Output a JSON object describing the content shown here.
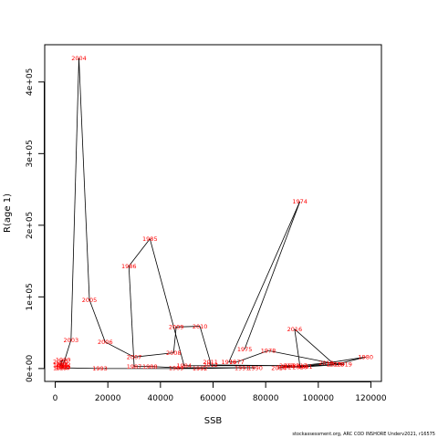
{
  "footer": "stockassessment.org, ARC COD INSHORE Underv2021, r16575",
  "chart_data": {
    "type": "line",
    "title": "",
    "xlabel": "SSB",
    "ylabel": "R(age 1)",
    "xlim": [
      -4000,
      124000
    ],
    "ylim": [
      -18000,
      452000
    ],
    "xticks": [
      0,
      20000,
      40000,
      60000,
      80000,
      100000,
      120000
    ],
    "yticks": [
      0,
      100000,
      200000,
      300000,
      400000
    ],
    "xtick_labels": [
      "0",
      "20000",
      "40000",
      "60000",
      "80000",
      "100000",
      "120000"
    ],
    "ytick_labels": [
      "0e+00",
      "1e+05",
      "2e+05",
      "3e+05",
      "4e+05"
    ],
    "grid": false,
    "legend": "none",
    "line_color": "#000000",
    "label_color": "#ff0000",
    "points": [
      {
        "year": "1975",
        "ssb": 72000,
        "rec": 27000
      },
      {
        "year": "1974",
        "ssb": 93000,
        "rec": 233000
      },
      {
        "year": "1976",
        "ssb": 66000,
        "rec": 9000
      },
      {
        "year": "1977",
        "ssb": 69000,
        "rec": 9000
      },
      {
        "year": "1978",
        "ssb": 81000,
        "rec": 25000
      },
      {
        "year": "1979",
        "ssb": 107000,
        "rec": 6000
      },
      {
        "year": "1980",
        "ssb": 118000,
        "rec": 16000
      },
      {
        "year": "1981",
        "ssb": 95000,
        "rec": 3000
      },
      {
        "year": "1982",
        "ssb": 87000,
        "rec": 2000
      },
      {
        "year": "1983",
        "ssb": 90000,
        "rec": 4000
      },
      {
        "year": "1984",
        "ssb": 49000,
        "rec": 4000
      },
      {
        "year": "1985",
        "ssb": 36000,
        "rec": 181000
      },
      {
        "year": "1986",
        "ssb": 28000,
        "rec": 143000
      },
      {
        "year": "1987",
        "ssb": 30000,
        "rec": 3000
      },
      {
        "year": "1988",
        "ssb": 36000,
        "rec": 3000
      },
      {
        "year": "1989",
        "ssb": 46000,
        "rec": 1000
      },
      {
        "year": "1990",
        "ssb": 76000,
        "rec": 1000
      },
      {
        "year": "1991",
        "ssb": 71000,
        "rec": 1000
      },
      {
        "year": "1992",
        "ssb": 55000,
        "rec": 0
      },
      {
        "year": "1993",
        "ssb": 17000,
        "rec": 0
      },
      {
        "year": "1994",
        "ssb": 2000,
        "rec": 1000
      },
      {
        "year": "1995",
        "ssb": 3000,
        "rec": 2000
      },
      {
        "year": "1996",
        "ssb": 2000,
        "rec": 4000
      },
      {
        "year": "1997",
        "ssb": 3000,
        "rec": 1000
      },
      {
        "year": "1998",
        "ssb": 2000,
        "rec": 6000
      },
      {
        "year": "1999",
        "ssb": 3000,
        "rec": 12000
      },
      {
        "year": "2000",
        "ssb": 2000,
        "rec": 10000
      },
      {
        "year": "2001",
        "ssb": 3000,
        "rec": 3000
      },
      {
        "year": "2002",
        "ssb": 3000,
        "rec": 5000
      },
      {
        "year": "2003",
        "ssb": 6000,
        "rec": 40000
      },
      {
        "year": "2004",
        "ssb": 9000,
        "rec": 433000
      },
      {
        "year": "2005",
        "ssb": 13000,
        "rec": 96000
      },
      {
        "year": "2006",
        "ssb": 19000,
        "rec": 37000
      },
      {
        "year": "2007",
        "ssb": 30000,
        "rec": 16000
      },
      {
        "year": "2008",
        "ssb": 45000,
        "rec": 22000
      },
      {
        "year": "2009",
        "ssb": 46000,
        "rec": 58000
      },
      {
        "year": "2010",
        "ssb": 55000,
        "rec": 59000
      },
      {
        "year": "2011",
        "ssb": 59000,
        "rec": 9000
      },
      {
        "year": "2012",
        "ssb": 59000,
        "rec": 5000
      },
      {
        "year": "2013",
        "ssb": 88000,
        "rec": 4000
      },
      {
        "year": "2014",
        "ssb": 85000,
        "rec": 1000
      },
      {
        "year": "2015",
        "ssb": 106000,
        "rec": 6000
      },
      {
        "year": "2016",
        "ssb": 91000,
        "rec": 55000
      },
      {
        "year": "2017",
        "ssb": 93000,
        "rec": 4000
      },
      {
        "year": "2018",
        "ssb": 103000,
        "rec": 8000
      },
      {
        "year": "2019",
        "ssb": 110000,
        "rec": 6000
      },
      {
        "year": "2020",
        "ssb": 93000,
        "rec": 2000
      }
    ]
  }
}
